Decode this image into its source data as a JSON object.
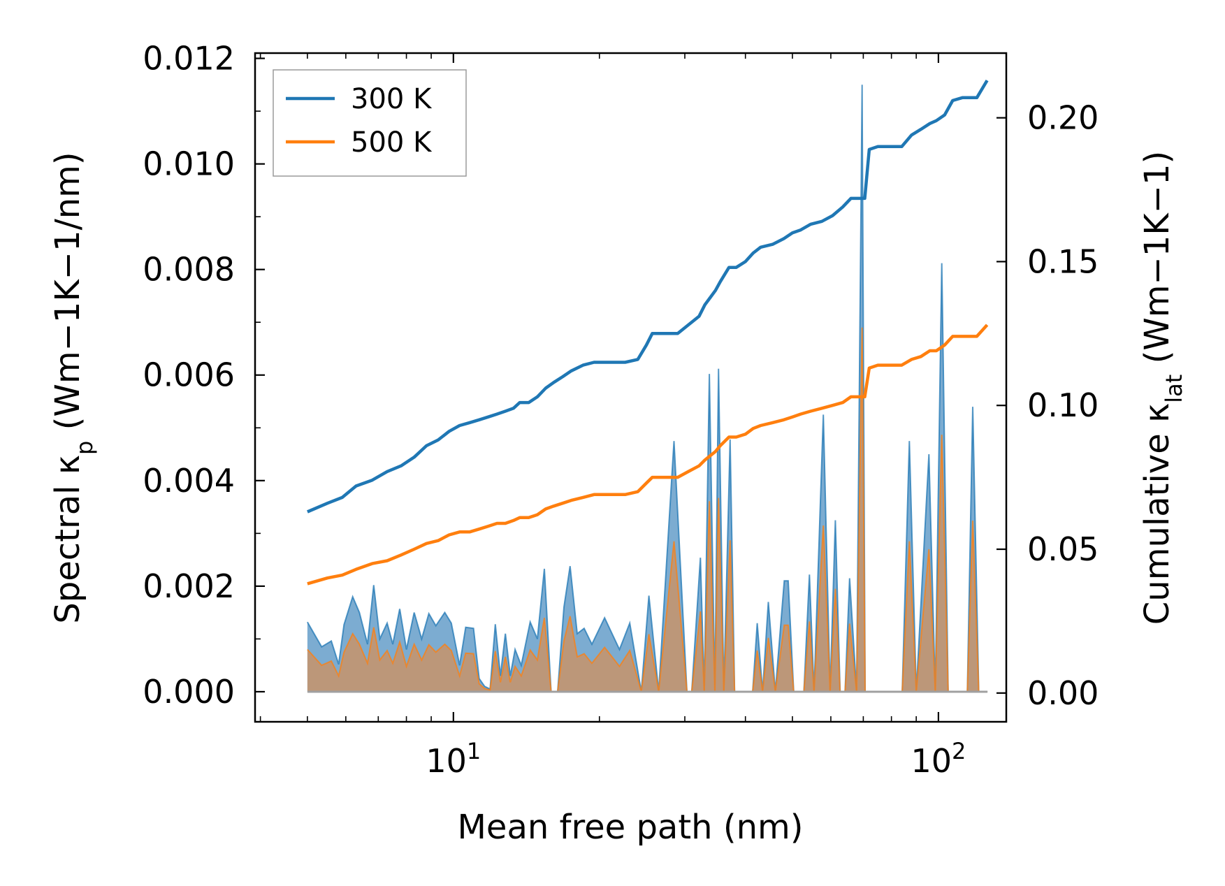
{
  "chart_data": {
    "type": "line",
    "title": "",
    "xlabel": "Mean free path (nm)",
    "ylabel_left": {
      "main": "Spectral κ",
      "sub": "p",
      "unit": " (Wm−1K−1/nm)"
    },
    "ylabel_right": {
      "main": "Cumulative κ",
      "sub": "lat",
      "unit": " (Wm−1K−1)"
    },
    "xscale": "log",
    "xlim": [
      3.9,
      138
    ],
    "ylim_left": [
      -0.00057,
      0.0121
    ],
    "ylim_right": [
      -0.01,
      0.2225
    ],
    "x_ticks": [
      {
        "value": 10,
        "base": "10",
        "exp": "1"
      },
      {
        "value": 100,
        "base": "10",
        "exp": "2"
      }
    ],
    "y_ticks_left": [
      "0.000",
      "0.002",
      "0.004",
      "0.006",
      "0.008",
      "0.010",
      "0.012"
    ],
    "y_ticks_right": [
      "0.00",
      "0.05",
      "0.10",
      "0.15",
      "0.20"
    ],
    "legend": {
      "location": "upper left",
      "entries": [
        "300 K",
        "500 K"
      ]
    },
    "colors": {
      "300 K": "#1f77b4",
      "500 K": "#ff7f0e",
      "fill_300": "#5b97c6",
      "fill_500": "#c8936a"
    },
    "spectral_series": [
      {
        "name": "300 K",
        "x": [
          5,
          5.35,
          5.6,
          5.8,
          5.95,
          6.2,
          6.4,
          6.65,
          6.85,
          7.05,
          7.3,
          7.5,
          7.75,
          8.0,
          8.3,
          8.6,
          8.9,
          9.2,
          9.6,
          9.9,
          10.3,
          10.6,
          11.0,
          11.3,
          11.6,
          11.9,
          12.2,
          12.5,
          12.8,
          13.1,
          13.4,
          13.8,
          14.4,
          14.9,
          15.4,
          15.9,
          16.4,
          16.9,
          17.4,
          18.0,
          18.6,
          19.3,
          20.5,
          22.0,
          23.1,
          24.4,
          25.3,
          26.5,
          28.5,
          30.3,
          31.0,
          32.3,
          32.9,
          33.7,
          34.6,
          35.2,
          36.1,
          37.2,
          38.0,
          39.6,
          41.4,
          42.3,
          43.4,
          44.6,
          46.1,
          48.1,
          49.0,
          50.3,
          52.8,
          54.2,
          55.4,
          57.9,
          59.8,
          61.3,
          62.7,
          64.2,
          65.6,
          67.8,
          69.6,
          70.6,
          72.3,
          74.7,
          84.2,
          87.1,
          90.0,
          95.6,
          98.5,
          101.6,
          104.7,
          108.0,
          114.7,
          117.7,
          121.1,
          126.2
        ],
        "y": [
          0.00132,
          0.00085,
          0.00096,
          0.00052,
          0.00127,
          0.0018,
          0.0015,
          0.0009,
          0.00202,
          0.001,
          0.0013,
          0.0009,
          0.00157,
          0.0008,
          0.0015,
          0.001,
          0.00148,
          0.00125,
          0.0015,
          0.0013,
          0.0005,
          0.00122,
          0.0012,
          0.00025,
          0.0001,
          5e-05,
          0.00128,
          0.0003,
          0.0011,
          0.0003,
          0.0008,
          0.0005,
          0.00132,
          0.001,
          0.00233,
          0.0,
          0.0,
          0.0016,
          0.00238,
          0.0011,
          0.0012,
          0.0009,
          0.0014,
          0.0008,
          0.0013,
          0.0,
          0.00182,
          0.0,
          0.00475,
          0.0,
          0.0,
          0.00254,
          0.0,
          0.00602,
          0.0,
          0.00612,
          0.0,
          0.00478,
          0.0,
          0.0,
          0.0,
          0.0013,
          0.0,
          0.0017,
          0.0,
          0.0021,
          0.0021,
          0.0,
          0.0,
          0.00222,
          0.0,
          0.00525,
          0.0,
          0.00325,
          0.0,
          0.0,
          0.00215,
          0.0,
          0.0115,
          0.0,
          0.0,
          0.0,
          0.0,
          0.00475,
          0.0,
          0.0045,
          0.0,
          0.00812,
          0.0,
          0.0,
          0.0,
          0.0054,
          0.0,
          0.0
        ]
      },
      {
        "name": "500 K",
        "x": [
          5,
          5.35,
          5.6,
          5.8,
          5.95,
          6.2,
          6.4,
          6.65,
          6.85,
          7.05,
          7.3,
          7.5,
          7.75,
          8.0,
          8.3,
          8.6,
          8.9,
          9.2,
          9.6,
          9.9,
          10.3,
          10.6,
          11.0,
          11.3,
          11.6,
          11.9,
          12.2,
          12.5,
          12.8,
          13.1,
          13.4,
          13.8,
          14.4,
          14.9,
          15.4,
          15.9,
          16.4,
          16.9,
          17.4,
          18.0,
          18.6,
          19.3,
          20.5,
          22.0,
          23.1,
          24.4,
          25.3,
          26.5,
          28.5,
          30.3,
          31.0,
          32.3,
          32.9,
          33.7,
          34.6,
          35.2,
          36.1,
          37.2,
          38.0,
          39.6,
          41.4,
          42.3,
          43.4,
          44.6,
          46.1,
          48.1,
          49.0,
          50.3,
          52.8,
          54.2,
          55.4,
          57.9,
          59.8,
          61.3,
          62.7,
          64.2,
          65.6,
          67.8,
          69.6,
          70.6,
          72.3,
          74.7,
          84.2,
          87.1,
          90.0,
          95.6,
          98.5,
          101.6,
          104.7,
          108.0,
          114.7,
          117.7,
          121.1,
          126.2
        ],
        "y": [
          0.0008,
          0.0005,
          0.00058,
          0.0003,
          0.00075,
          0.0011,
          0.0009,
          0.00054,
          0.00122,
          0.0006,
          0.00078,
          0.00054,
          0.00094,
          0.00048,
          0.0009,
          0.0006,
          0.00089,
          0.00075,
          0.0009,
          0.00078,
          0.0003,
          0.00073,
          0.00072,
          0.00015,
          6e-05,
          3e-05,
          0.00077,
          0.00018,
          0.00066,
          0.00018,
          0.00048,
          0.0003,
          0.00079,
          0.0006,
          0.0014,
          0.0,
          0.0,
          0.00096,
          0.00143,
          0.00066,
          0.00072,
          0.00054,
          0.00084,
          0.00048,
          0.00078,
          0.0,
          0.00109,
          0.0,
          0.00285,
          0.0,
          0.0,
          0.00152,
          0.0,
          0.00361,
          0.0,
          0.00367,
          0.0,
          0.00287,
          0.0,
          0.0,
          0.0,
          0.00078,
          0.0,
          0.00102,
          0.0,
          0.00126,
          0.00126,
          0.0,
          0.0,
          0.00133,
          0.0,
          0.00315,
          0.0,
          0.00195,
          0.0,
          0.0,
          0.00129,
          0.0,
          0.0069,
          0.0,
          0.0,
          0.0,
          0.0,
          0.00285,
          0.0,
          0.0027,
          0.0,
          0.00487,
          0.0,
          0.0,
          0.0,
          0.00324,
          0.0,
          0.0
        ]
      }
    ],
    "cumulative_series": [
      {
        "name": "300 K",
        "x": [
          5,
          5.5,
          5.9,
          6.3,
          6.8,
          7.3,
          7.8,
          8.3,
          8.8,
          9.3,
          9.8,
          10.3,
          10.8,
          11.3,
          11.8,
          12.3,
          12.8,
          13.3,
          13.7,
          14.3,
          14.9,
          15.5,
          16.1,
          16.8,
          17.5,
          18.5,
          19.5,
          21.0,
          22.6,
          24.0,
          25.0,
          25.7,
          27.0,
          29.0,
          30.5,
          32.1,
          33.0,
          34.7,
          35.5,
          37.0,
          38.3,
          40.0,
          41.5,
          43.0,
          45.5,
          48.0,
          50.0,
          52.0,
          54.5,
          57.5,
          60.5,
          63.5,
          66.0,
          68.5,
          70.5,
          72.0,
          75.0,
          79.0,
          84.0,
          88.0,
          92.0,
          96.0,
          99.0,
          103.0,
          107.0,
          112.0,
          116.0,
          120.0,
          126.0
        ],
        "y": [
          0.063,
          0.066,
          0.068,
          0.072,
          0.074,
          0.077,
          0.079,
          0.082,
          0.086,
          0.088,
          0.091,
          0.093,
          0.094,
          0.095,
          0.096,
          0.097,
          0.098,
          0.099,
          0.101,
          0.101,
          0.103,
          0.106,
          0.108,
          0.11,
          0.112,
          0.114,
          0.115,
          0.115,
          0.115,
          0.116,
          0.121,
          0.125,
          0.125,
          0.125,
          0.128,
          0.131,
          0.135,
          0.14,
          0.143,
          0.148,
          0.148,
          0.15,
          0.153,
          0.155,
          0.156,
          0.158,
          0.16,
          0.161,
          0.163,
          0.164,
          0.166,
          0.169,
          0.172,
          0.172,
          0.172,
          0.189,
          0.19,
          0.19,
          0.19,
          0.194,
          0.196,
          0.198,
          0.199,
          0.201,
          0.206,
          0.207,
          0.207,
          0.207,
          0.213
        ]
      },
      {
        "name": "500 K",
        "x": [
          5,
          5.5,
          5.9,
          6.3,
          6.8,
          7.3,
          7.8,
          8.3,
          8.8,
          9.3,
          9.8,
          10.3,
          10.8,
          11.3,
          11.8,
          12.3,
          12.8,
          13.3,
          13.7,
          14.3,
          14.9,
          15.5,
          16.1,
          16.8,
          17.5,
          18.5,
          19.5,
          21.0,
          22.6,
          24.0,
          25.0,
          25.7,
          27.0,
          29.0,
          30.5,
          32.1,
          33.0,
          34.7,
          35.5,
          37.0,
          38.3,
          40.0,
          41.5,
          43.0,
          45.5,
          48.0,
          50.0,
          52.0,
          54.5,
          57.5,
          60.5,
          63.5,
          66.0,
          68.5,
          70.5,
          72.0,
          75.0,
          79.0,
          84.0,
          88.0,
          92.0,
          96.0,
          99.0,
          103.0,
          107.0,
          112.0,
          116.0,
          120.0,
          126.0
        ],
        "y": [
          0.038,
          0.04,
          0.041,
          0.043,
          0.045,
          0.046,
          0.048,
          0.05,
          0.052,
          0.053,
          0.055,
          0.056,
          0.056,
          0.057,
          0.058,
          0.059,
          0.059,
          0.06,
          0.061,
          0.061,
          0.062,
          0.064,
          0.065,
          0.066,
          0.067,
          0.068,
          0.069,
          0.069,
          0.069,
          0.07,
          0.073,
          0.075,
          0.075,
          0.075,
          0.077,
          0.079,
          0.081,
          0.084,
          0.086,
          0.089,
          0.089,
          0.09,
          0.092,
          0.093,
          0.094,
          0.095,
          0.096,
          0.097,
          0.098,
          0.099,
          0.1,
          0.101,
          0.103,
          0.103,
          0.103,
          0.113,
          0.114,
          0.114,
          0.114,
          0.116,
          0.117,
          0.119,
          0.119,
          0.121,
          0.124,
          0.124,
          0.124,
          0.124,
          0.128
        ]
      }
    ]
  }
}
